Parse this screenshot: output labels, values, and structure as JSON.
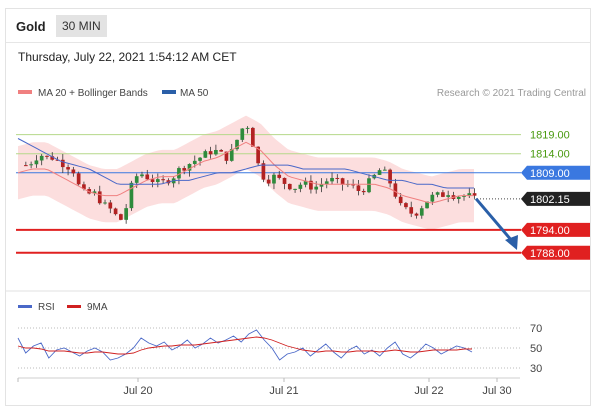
{
  "header": {
    "instrument": "Gold",
    "timeframe": "30 MIN",
    "datetime": "Thursday, July 22, 2021 1:54:12 AM CET"
  },
  "legend": {
    "ma_bb": "MA 20 + Bollinger Bands",
    "ma50": "MA 50",
    "credit": "Research © 2021 Trading Central",
    "rsi": "RSI",
    "ma9": "9MA"
  },
  "colors": {
    "bands": "#fcdede",
    "ma20": "#f08080",
    "ma50": "#4a68c8",
    "resistance": "#b5d88a",
    "resistance_text": "#4a9a10",
    "pivot": "#3a78e0",
    "support": "#e02020",
    "arrow": "#2a5fa8",
    "bull": "#2e8b3c",
    "bear": "#b22222",
    "rsi": "#4a68c8",
    "rsi_ma": "#d02020"
  },
  "chart_data": [
    {
      "type": "candlestick",
      "x_ticks": [
        "Jul 20",
        "Jul 21",
        "Jul 22",
        "Jul 30"
      ],
      "ylim": [
        1784,
        1826
      ],
      "current_price": 1802.15,
      "current_price_label": "1802.15",
      "levels": [
        {
          "value": 1819.0,
          "label": "1819.00",
          "kind": "resistance"
        },
        {
          "value": 1814.0,
          "label": "1814.00",
          "kind": "resistance"
        },
        {
          "value": 1809.0,
          "label": "1809.00",
          "kind": "pivot"
        },
        {
          "value": 1794.0,
          "label": "1794.00",
          "kind": "support"
        },
        {
          "value": 1788.0,
          "label": "1788.00",
          "kind": "support"
        }
      ],
      "arrow": {
        "from": 1802.2,
        "to": 1789.0
      },
      "close_path": [
        1811,
        1812,
        1814,
        1813,
        1813,
        1812,
        1811,
        1810,
        1805,
        1803,
        1804,
        1802,
        1800,
        1799,
        1796,
        1800,
        1807,
        1809,
        1808,
        1807,
        1806,
        1807,
        1808,
        1810,
        1811,
        1812,
        1813,
        1814,
        1815,
        1814,
        1813,
        1815,
        1820,
        1822,
        1816,
        1809,
        1807,
        1808,
        1807,
        1806,
        1805,
        1806,
        1806,
        1805,
        1806,
        1807,
        1807,
        1806,
        1806,
        1805,
        1804,
        1806,
        1808,
        1810,
        1808,
        1804,
        1800,
        1799,
        1798,
        1800,
        1802,
        1803,
        1803,
        1804,
        1803,
        1803,
        1803,
        1802
      ],
      "ma50_path": [
        1818,
        1816,
        1814,
        1812,
        1811,
        1810,
        1808,
        1806,
        1806,
        1806,
        1806,
        1807,
        1807,
        1808,
        1809,
        1809,
        1810,
        1811,
        1811,
        1811,
        1810,
        1810,
        1810,
        1810,
        1809,
        1808,
        1807,
        1807,
        1806,
        1806,
        1805,
        1805,
        1805
      ],
      "ma20_path": [
        1809,
        1810,
        1810,
        1808,
        1806,
        1804,
        1803,
        1803,
        1805,
        1807,
        1808,
        1808,
        1810,
        1812,
        1813,
        1815,
        1817,
        1815,
        1811,
        1808,
        1807,
        1806,
        1806,
        1806,
        1806,
        1806,
        1805,
        1803,
        1802,
        1801,
        1802,
        1803,
        1803
      ],
      "band_width": 7
    },
    {
      "type": "line",
      "title": "RSI",
      "y_ticks": [
        70,
        50,
        30
      ],
      "ylim": [
        20,
        80
      ],
      "rsi": [
        60,
        45,
        52,
        55,
        40,
        48,
        50,
        46,
        42,
        47,
        50,
        46,
        38,
        40,
        44,
        50,
        60,
        55,
        52,
        56,
        48,
        52,
        58,
        50,
        54,
        60,
        55,
        58,
        62,
        56,
        64,
        68,
        58,
        50,
        38,
        44,
        46,
        50,
        42,
        48,
        54,
        46,
        40,
        48,
        52,
        44,
        48,
        42,
        50,
        56,
        44,
        40,
        46,
        54,
        50,
        44,
        48,
        52,
        50,
        46
      ],
      "ma9": [
        52,
        50,
        50,
        49,
        47,
        47,
        47,
        46,
        45,
        45,
        46,
        46,
        45,
        44,
        44,
        45,
        48,
        50,
        51,
        52,
        52,
        53,
        53,
        53,
        54,
        55,
        56,
        57,
        58,
        59,
        60,
        61,
        60,
        58,
        55,
        52,
        50,
        48,
        47,
        46,
        47,
        47,
        46,
        46,
        47,
        47,
        47,
        46,
        47,
        48,
        47,
        46,
        46,
        47,
        48,
        48,
        48,
        48,
        49,
        49
      ]
    }
  ]
}
